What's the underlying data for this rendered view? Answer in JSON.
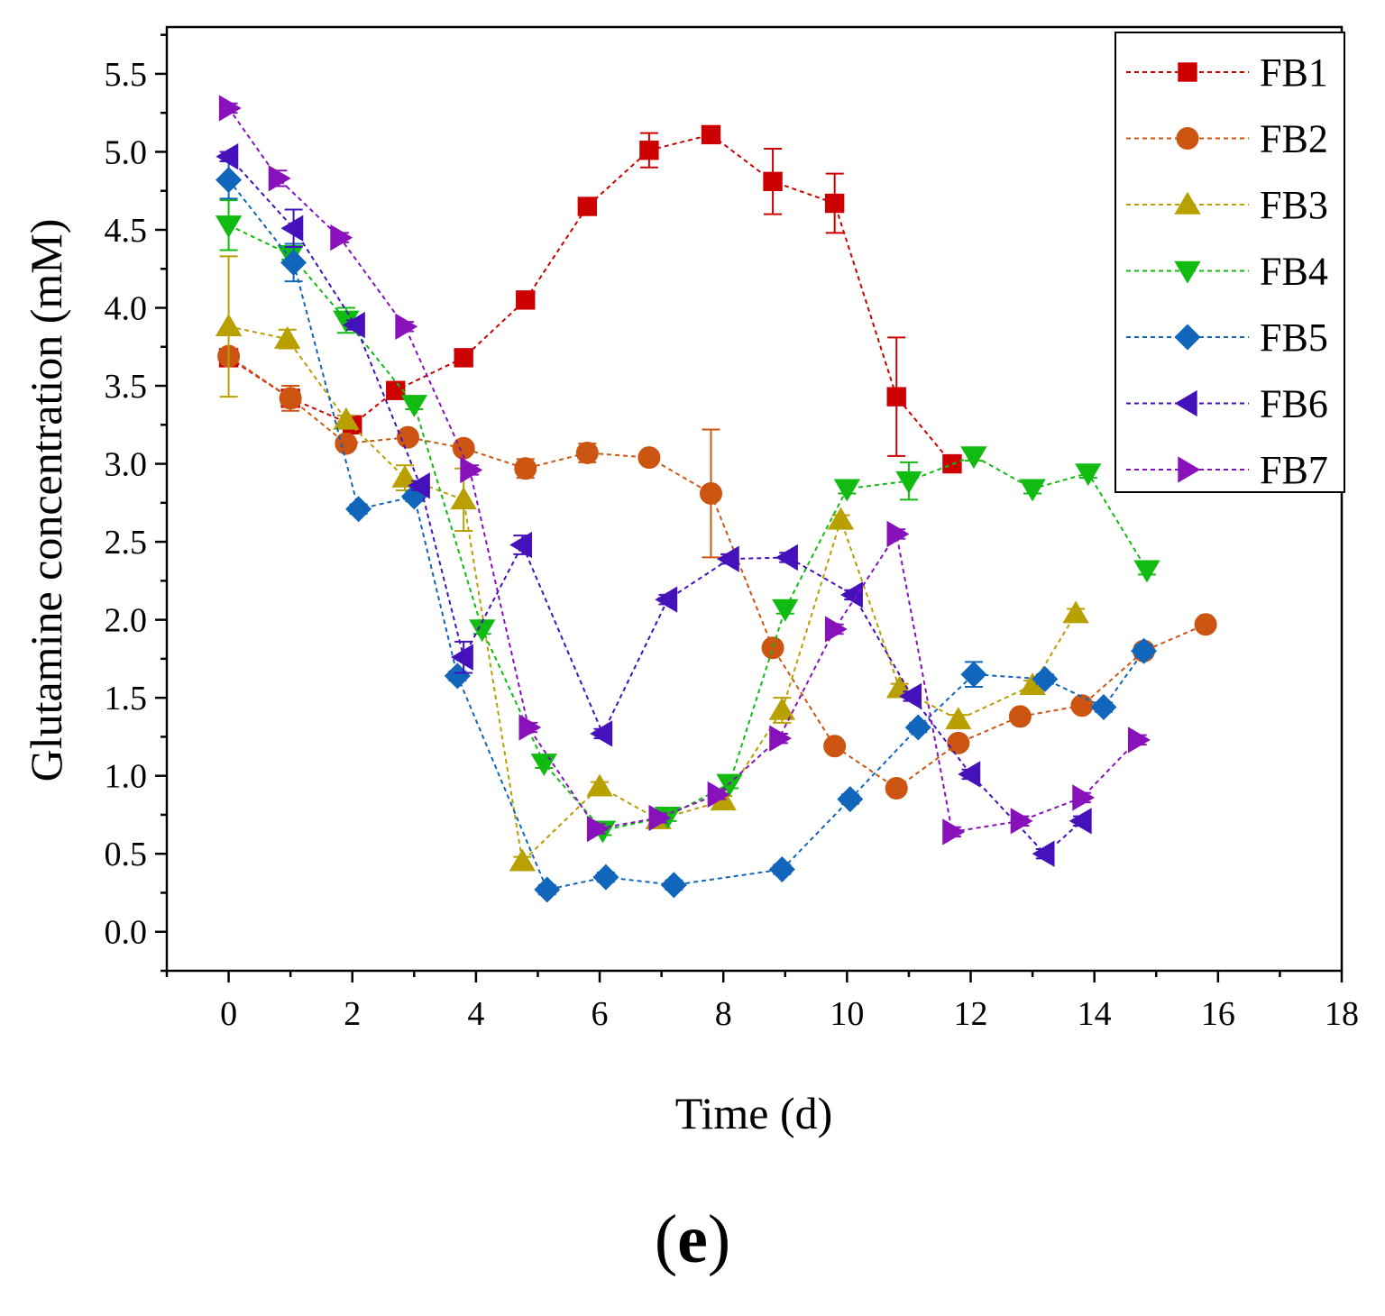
{
  "chart_data": {
    "type": "line",
    "title": "",
    "xlabel": "Time (d)",
    "ylabel": "Glutamine concentration (mM)",
    "xlim": [
      -1,
      18
    ],
    "ylim": [
      -0.25,
      5.8
    ],
    "xticks": [
      0,
      2,
      4,
      6,
      8,
      10,
      12,
      14,
      16,
      18
    ],
    "yticks": [
      0.0,
      0.5,
      1.0,
      1.5,
      2.0,
      2.5,
      3.0,
      3.5,
      4.0,
      4.5,
      5.0,
      5.5
    ],
    "grid": false,
    "legend_position": "top-right",
    "panel_label": "e",
    "series": [
      {
        "name": "FB1",
        "color": "#cc0000",
        "marker": "square",
        "x": [
          0,
          1,
          2,
          2.7,
          3.8,
          4.8,
          5.8,
          6.8,
          7.8,
          8.8,
          9.8,
          10.8,
          11.7
        ],
        "y": [
          3.68,
          3.42,
          3.25,
          3.47,
          3.68,
          4.05,
          4.65,
          5.01,
          5.11,
          4.81,
          4.67,
          3.43,
          3.0
        ],
        "err": [
          0.03,
          0.05,
          0.03,
          0.04,
          0.03,
          0.03,
          0.03,
          0.11,
          0.03,
          0.21,
          0.19,
          0.38,
          0.03
        ]
      },
      {
        "name": "FB2",
        "color": "#cc5511",
        "marker": "circle",
        "x": [
          0,
          1,
          1.9,
          2.9,
          3.8,
          4.8,
          5.8,
          6.8,
          7.8,
          8.8,
          9.8,
          10.8,
          11.8,
          12.8,
          13.8,
          14.8,
          15.8
        ],
        "y": [
          3.69,
          3.42,
          3.13,
          3.17,
          3.1,
          2.97,
          3.07,
          3.04,
          2.81,
          1.82,
          1.19,
          0.92,
          1.21,
          1.38,
          1.45,
          1.8,
          1.97
        ],
        "err": [
          0.03,
          0.08,
          0.03,
          0.03,
          0.03,
          0.06,
          0.06,
          0.03,
          0.41,
          0.03,
          0.03,
          0.03,
          0.03,
          0.03,
          0.03,
          0.03,
          0.03
        ]
      },
      {
        "name": "FB3",
        "color": "#b8a000",
        "marker": "triangle-up",
        "x": [
          0,
          0.95,
          1.9,
          2.85,
          3.8,
          4.75,
          6.0,
          6.95,
          8.0,
          8.95,
          9.9,
          10.85,
          11.8,
          13.0,
          13.7
        ],
        "y": [
          3.88,
          3.8,
          3.28,
          2.91,
          2.77,
          0.45,
          0.93,
          0.72,
          0.84,
          1.42,
          2.64,
          1.56,
          1.36,
          1.58,
          2.04
        ],
        "err": [
          0.45,
          0.06,
          0.03,
          0.08,
          0.2,
          0.03,
          0.03,
          0.03,
          0.03,
          0.08,
          0.03,
          0.03,
          0.03,
          0.03,
          0.03
        ]
      },
      {
        "name": "FB4",
        "color": "#11bb11",
        "marker": "triangle-down",
        "x": [
          0,
          1.0,
          1.9,
          3.0,
          4.1,
          5.1,
          6.05,
          7.1,
          8.1,
          9.0,
          10.0,
          11.0,
          12.05,
          13.0,
          13.9,
          14.85
        ],
        "y": [
          4.53,
          4.34,
          3.92,
          3.38,
          1.94,
          1.08,
          0.65,
          0.74,
          0.95,
          2.07,
          2.84,
          2.89,
          3.05,
          2.84,
          2.94,
          2.32
        ],
        "err": [
          0.16,
          0.03,
          0.08,
          0.03,
          0.03,
          0.03,
          0.03,
          0.03,
          0.03,
          0.03,
          0.03,
          0.12,
          0.03,
          0.03,
          0.03,
          0.03
        ]
      },
      {
        "name": "FB5",
        "color": "#1166bb",
        "marker": "diamond",
        "x": [
          0,
          1.05,
          2.1,
          3.0,
          3.7,
          5.15,
          6.1,
          7.2,
          8.95,
          10.05,
          11.15,
          12.05,
          13.2,
          14.15,
          14.8
        ],
        "y": [
          4.82,
          4.29,
          2.71,
          2.79,
          1.64,
          0.27,
          0.35,
          0.3,
          0.4,
          0.85,
          1.31,
          1.65,
          1.62,
          1.44,
          1.8
        ],
        "err": [
          0.12,
          0.12,
          0.03,
          0.03,
          0.03,
          0.03,
          0.03,
          0.03,
          0.03,
          0.03,
          0.03,
          0.08,
          0.03,
          0.03,
          0.04
        ]
      },
      {
        "name": "FB6",
        "color": "#4411bb",
        "marker": "triangle-left",
        "x": [
          0,
          1.05,
          2.05,
          3.1,
          3.8,
          4.75,
          6.05,
          7.1,
          8.1,
          9.05,
          10.1,
          11.05,
          12.0,
          13.2,
          13.8
        ],
        "y": [
          4.97,
          4.51,
          3.89,
          2.86,
          1.76,
          2.48,
          1.27,
          2.13,
          2.39,
          2.4,
          2.16,
          1.51,
          1.01,
          0.5,
          0.71
        ],
        "err": [
          0.03,
          0.12,
          0.03,
          0.03,
          0.1,
          0.06,
          0.03,
          0.03,
          0.03,
          0.03,
          0.03,
          0.03,
          0.03,
          0.03,
          0.03
        ]
      },
      {
        "name": "FB7",
        "color": "#8811bb",
        "marker": "triangle-right",
        "x": [
          0,
          0.8,
          1.8,
          2.85,
          3.9,
          4.85,
          5.95,
          6.95,
          7.9,
          8.9,
          9.8,
          10.8,
          11.7,
          12.8,
          13.8,
          14.7
        ],
        "y": [
          5.28,
          4.83,
          4.45,
          3.88,
          2.96,
          1.31,
          0.66,
          0.73,
          0.88,
          1.24,
          1.94,
          2.55,
          0.64,
          0.71,
          0.86,
          1.23
        ],
        "err": [
          0.03,
          0.05,
          0.03,
          0.03,
          0.03,
          0.03,
          0.03,
          0.03,
          0.03,
          0.03,
          0.03,
          0.03,
          0.03,
          0.03,
          0.03,
          0.03
        ]
      }
    ]
  }
}
